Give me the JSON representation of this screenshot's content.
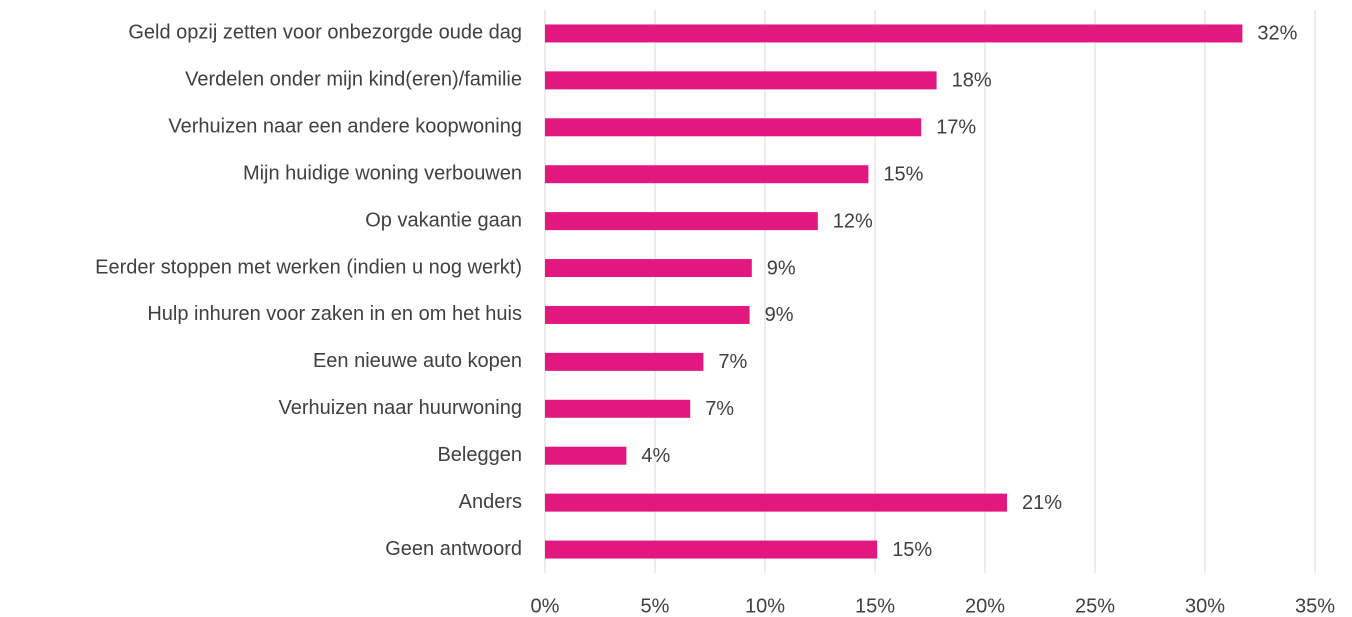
{
  "chart_data": {
    "type": "bar",
    "orientation": "horizontal",
    "categories": [
      "Geld opzij zetten voor onbezorgde oude dag",
      "Verdelen onder mijn kind(eren)/familie",
      "Verhuizen naar een andere koopwoning",
      "Mijn huidige woning verbouwen",
      "Op vakantie gaan",
      "Eerder stoppen met werken (indien u nog werkt)",
      "Hulp inhuren voor zaken in en om het huis",
      "Een nieuwe auto kopen",
      "Verhuizen naar huurwoning",
      "Beleggen",
      "Anders",
      "Geen antwoord"
    ],
    "values": [
      31.7,
      17.8,
      17.1,
      14.7,
      12.4,
      9.4,
      9.3,
      7.2,
      6.6,
      3.7,
      21.0,
      15.1
    ],
    "value_labels": [
      "32%",
      "18%",
      "17%",
      "15%",
      "12%",
      "9%",
      "9%",
      "7%",
      "7%",
      "4%",
      "21%",
      "15%"
    ],
    "color": "#e2177f",
    "xlim": [
      0,
      35
    ],
    "xticks": [
      {
        "value": 0,
        "label": "0%"
      },
      {
        "value": 5,
        "label": "5%"
      },
      {
        "value": 10,
        "label": "10%"
      },
      {
        "value": 15,
        "label": "15%"
      },
      {
        "value": 20,
        "label": "20%"
      },
      {
        "value": 25,
        "label": "25%"
      },
      {
        "value": 30,
        "label": "30%"
      },
      {
        "value": 35,
        "label": "35%"
      }
    ],
    "grid": true
  }
}
